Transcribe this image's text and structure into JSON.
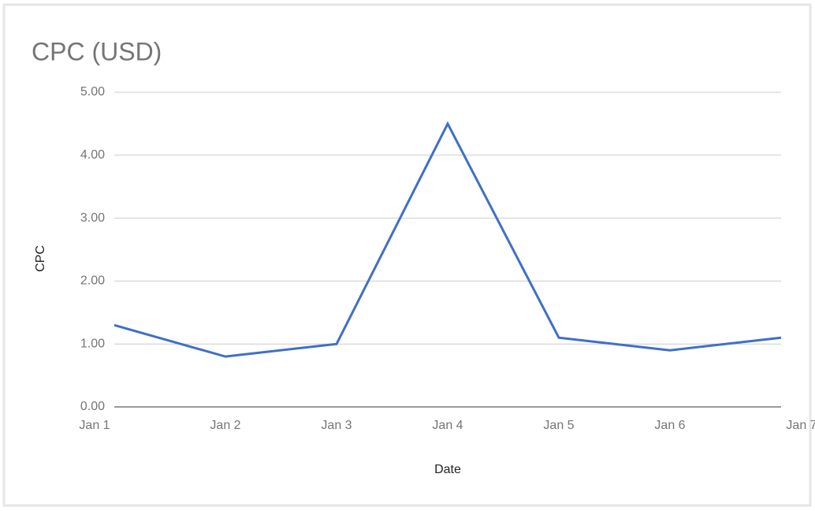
{
  "chart_data": {
    "type": "line",
    "title": "CPC (USD)",
    "x_label": "Date",
    "y_label": "CPC",
    "categories": [
      "Jan 1",
      "Jan 2",
      "Jan 3",
      "Jan 4",
      "Jan 5",
      "Jan 6",
      "Jan 7"
    ],
    "series": [
      {
        "name": "CPC",
        "color": "#3f6fc8",
        "values": [
          1.3,
          0.8,
          1.0,
          4.5,
          1.1,
          0.9,
          1.1
        ]
      }
    ],
    "ylim": [
      0,
      5
    ],
    "yticks": [
      {
        "value": 0,
        "label": "0.00"
      },
      {
        "value": 1,
        "label": "1.00"
      },
      {
        "value": 2,
        "label": "2.00"
      },
      {
        "value": 3,
        "label": "3.00"
      },
      {
        "value": 4,
        "label": "4.00"
      },
      {
        "value": 5,
        "label": "5.00"
      }
    ],
    "grid": true
  }
}
